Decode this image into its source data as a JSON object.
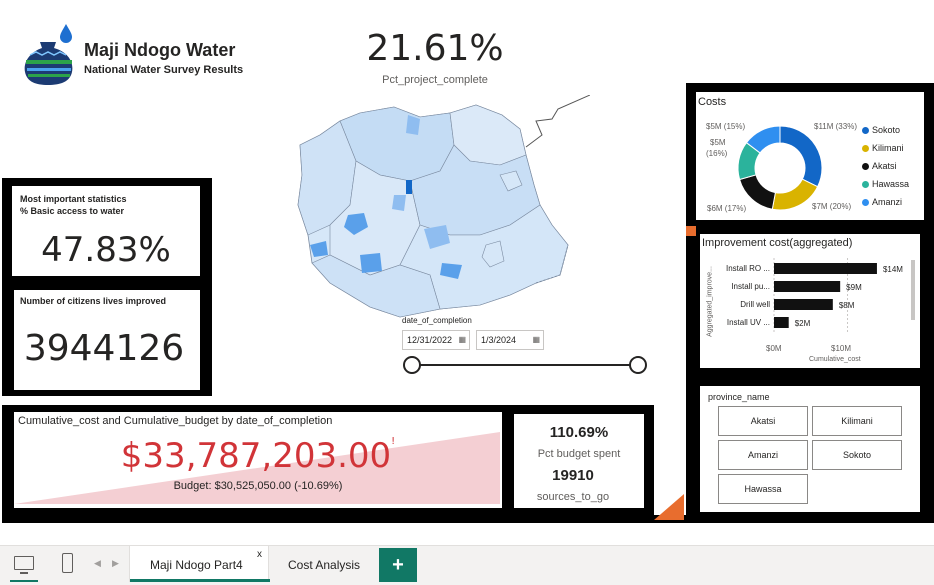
{
  "header": {
    "title": "Maji Ndogo Water",
    "subtitle": "National Water Survey Results"
  },
  "kpi_project": {
    "value": "21.61%",
    "label": "Pct_project_complete"
  },
  "kpi_basic": {
    "title_line1": "Most important statistics",
    "title_line2": "% Basic access to water",
    "value": "47.83%"
  },
  "kpi_citizens": {
    "title": "Number of citizens lives improved",
    "value": "3944126"
  },
  "date_slicer": {
    "label": "date_of_completion",
    "start": "12/31/2022",
    "end": "1/3/2024"
  },
  "costs": {
    "title": "Costs",
    "labels": {
      "sokoto": "$11M (33%)",
      "kilimani": "$7M (20%)",
      "akatsi": "$6M (17%)",
      "hawassa_line1": "$5M",
      "hawassa_line2": "(16%)",
      "amanzi": "$5M (15%)"
    },
    "legend": [
      {
        "name": "Sokoto",
        "color": "#1267c7"
      },
      {
        "name": "Kilimani",
        "color": "#d9b300"
      },
      {
        "name": "Akatsi",
        "color": "#111111"
      },
      {
        "name": "Hawassa",
        "color": "#2bb39c"
      },
      {
        "name": "Amanzi",
        "color": "#2f8ff0"
      }
    ]
  },
  "chart_data": [
    {
      "type": "pie",
      "title": "Costs",
      "categories": [
        "Sokoto",
        "Kilimani",
        "Akatsi",
        "Hawassa",
        "Amanzi"
      ],
      "values": [
        11,
        7,
        6,
        5,
        5
      ],
      "percent": [
        33,
        20,
        17,
        16,
        15
      ],
      "colors": [
        "#1267c7",
        "#d9b300",
        "#111111",
        "#2bb39c",
        "#2f8ff0"
      ]
    },
    {
      "type": "bar",
      "title": "Improvement cost(aggregated)",
      "categories": [
        "Install RO ...",
        "Install pu...",
        "Drill well",
        "Install UV ..."
      ],
      "values": [
        14,
        9,
        8,
        2
      ],
      "data_labels": [
        "$14M",
        "$9M",
        "$8M",
        "$2M"
      ],
      "xlabel": "Cumulative_cost",
      "ylabel": "Aggregated_improve...",
      "xlim": [
        0,
        17
      ],
      "xticks": [
        "$0M",
        "$10M"
      ]
    }
  ],
  "improvement": {
    "title": "Improvement cost(aggregated)",
    "ylabel": "Aggregated_improve...",
    "xlabel": "Cumulative_cost",
    "xticks": [
      "$0M",
      "$10M"
    ]
  },
  "province": {
    "title": "province_name",
    "buttons": [
      "Akatsi",
      "Kilimani",
      "Amanzi",
      "Sokoto",
      "Hawassa"
    ]
  },
  "cumulative": {
    "title": "Cumulative_cost and Cumulative_budget by date_of_completion",
    "value": "$33,787,203.00",
    "mark": "!",
    "budget": "Budget: $30,525,050.00 (-10.69%)"
  },
  "budget_stats": {
    "pct": "110.69%",
    "pct_label": "Pct budget spent",
    "sources": "19910",
    "sources_label": "sources_to_go"
  },
  "tabs": {
    "active": "Maji Ndogo Part4",
    "close": "x",
    "other": "Cost Analysis",
    "add": "+"
  }
}
